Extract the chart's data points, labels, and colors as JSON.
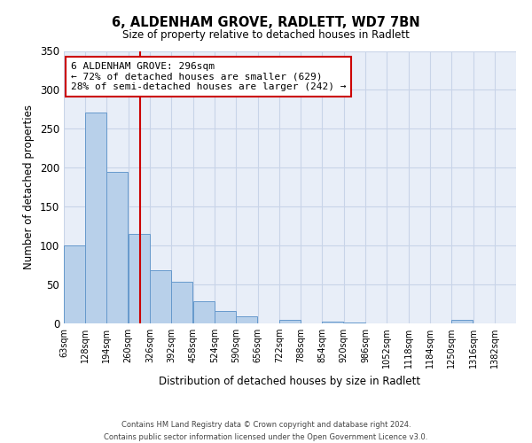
{
  "title": "6, ALDENHAM GROVE, RADLETT, WD7 7BN",
  "subtitle": "Size of property relative to detached houses in Radlett",
  "xlabel": "Distribution of detached houses by size in Radlett",
  "ylabel": "Number of detached properties",
  "bin_labels": [
    "63sqm",
    "128sqm",
    "194sqm",
    "260sqm",
    "326sqm",
    "392sqm",
    "458sqm",
    "524sqm",
    "590sqm",
    "656sqm",
    "722sqm",
    "788sqm",
    "854sqm",
    "920sqm",
    "986sqm",
    "1052sqm",
    "1118sqm",
    "1184sqm",
    "1250sqm",
    "1316sqm",
    "1382sqm"
  ],
  "bin_edges": [
    63,
    128,
    194,
    260,
    326,
    392,
    458,
    524,
    590,
    656,
    722,
    788,
    854,
    920,
    986,
    1052,
    1118,
    1184,
    1250,
    1316,
    1382
  ],
  "bar_heights": [
    100,
    271,
    195,
    115,
    68,
    54,
    28,
    16,
    9,
    0,
    5,
    0,
    2,
    1,
    0,
    0,
    0,
    0,
    4,
    0,
    0
  ],
  "bar_color": "#b8d0ea",
  "bar_edge_color": "#6699cc",
  "grid_color": "#c8d4e8",
  "background_color": "#e8eef8",
  "red_line_x": 296,
  "annotation_text_line1": "6 ALDENHAM GROVE: 296sqm",
  "annotation_text_line2": "← 72% of detached houses are smaller (629)",
  "annotation_text_line3": "28% of semi-detached houses are larger (242) →",
  "annotation_box_color": "#cc0000",
  "ylim": [
    0,
    350
  ],
  "yticks": [
    0,
    50,
    100,
    150,
    200,
    250,
    300,
    350
  ],
  "footer_line1": "Contains HM Land Registry data © Crown copyright and database right 2024.",
  "footer_line2": "Contains public sector information licensed under the Open Government Licence v3.0."
}
